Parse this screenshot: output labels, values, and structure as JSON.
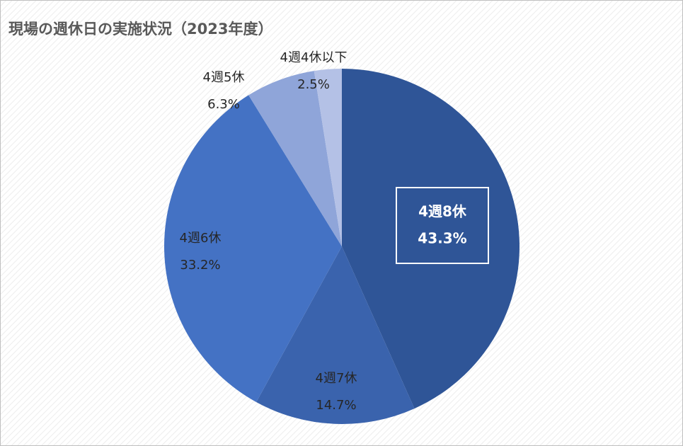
{
  "chart_data": {
    "type": "pie",
    "title": "現場の週休日の実施状況（2023年度）",
    "categories": [
      "4週8休",
      "4週7休",
      "4週6休",
      "4週5休",
      "4週4休以下"
    ],
    "values": [
      43.3,
      14.7,
      33.2,
      6.3,
      2.5
    ],
    "value_labels": [
      "43.3%",
      "14.7%",
      "33.2%",
      "6.3%",
      "2.5%"
    ],
    "colors": [
      "#2f5597",
      "#3a63ad",
      "#4472c4",
      "#8fa5d9",
      "#b4c1e6"
    ]
  }
}
